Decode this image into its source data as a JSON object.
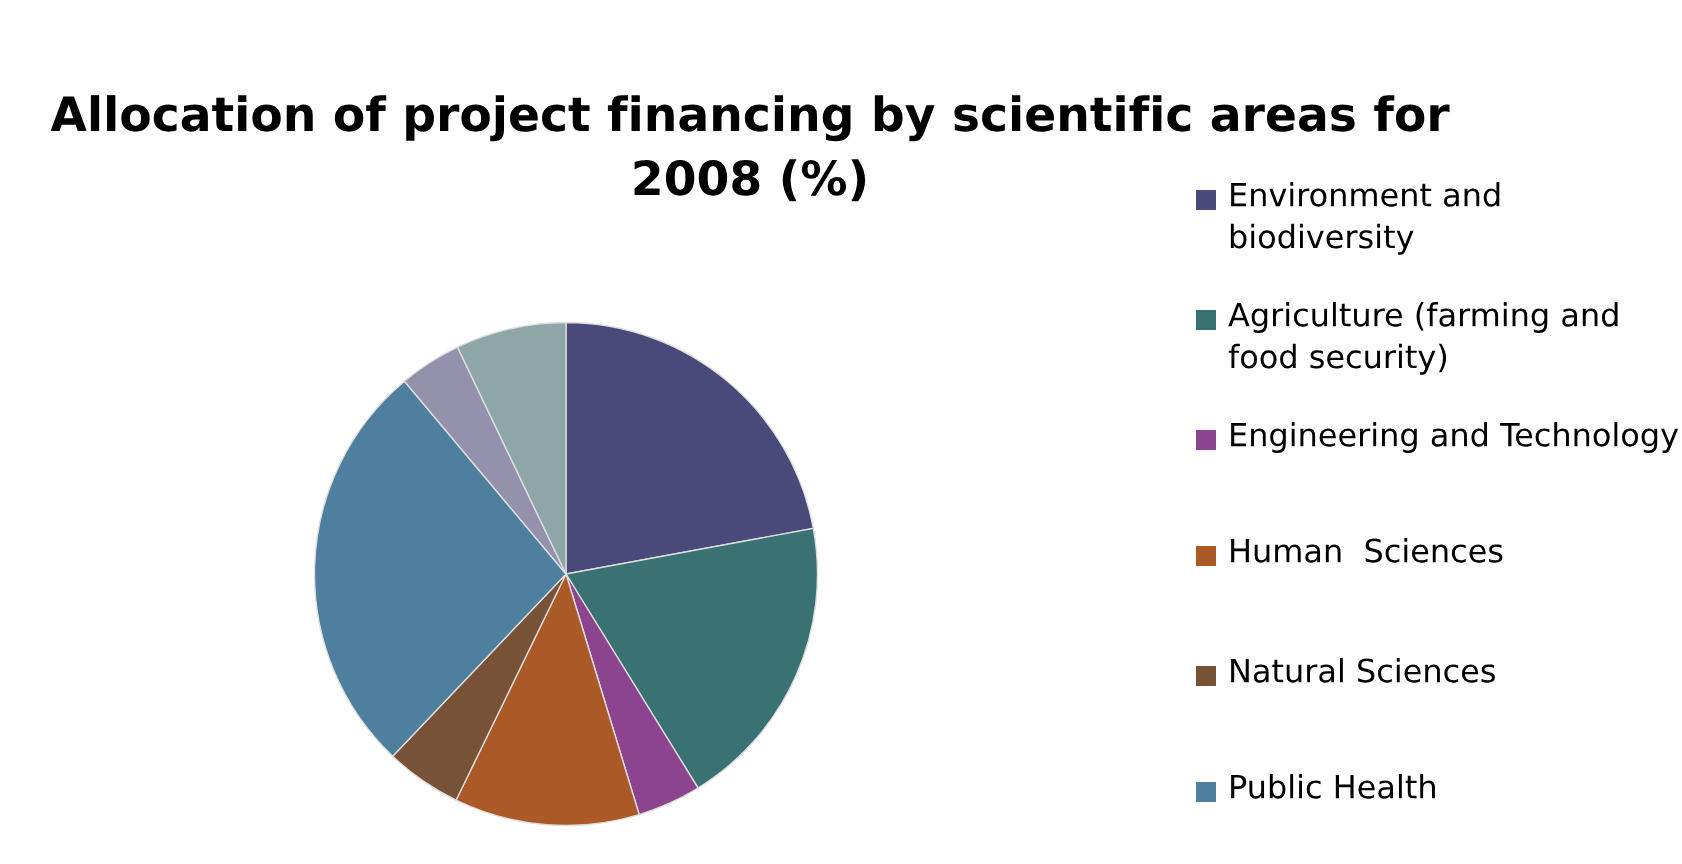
{
  "chart_data": {
    "type": "pie",
    "title": "Allocation of project financing by scientific areas for 2008 (%)",
    "categories": [
      "Environment and biodiversity",
      "Agriculture (farming and food security)",
      "Engineering and Technology",
      "Human  Sciences",
      "Natural Sciences",
      "Public Health",
      null,
      null
    ],
    "values": [
      22.1,
      19.1,
      4.1,
      11.9,
      4.9,
      26.8,
      4.0,
      7.1
    ],
    "colors": [
      "#4a4a7a",
      "#3a7274",
      "#8c448e",
      "#ab5a27",
      "#775236",
      "#4f7f9f",
      "#9391ab",
      "#8ea6a8"
    ],
    "legend": "right"
  }
}
